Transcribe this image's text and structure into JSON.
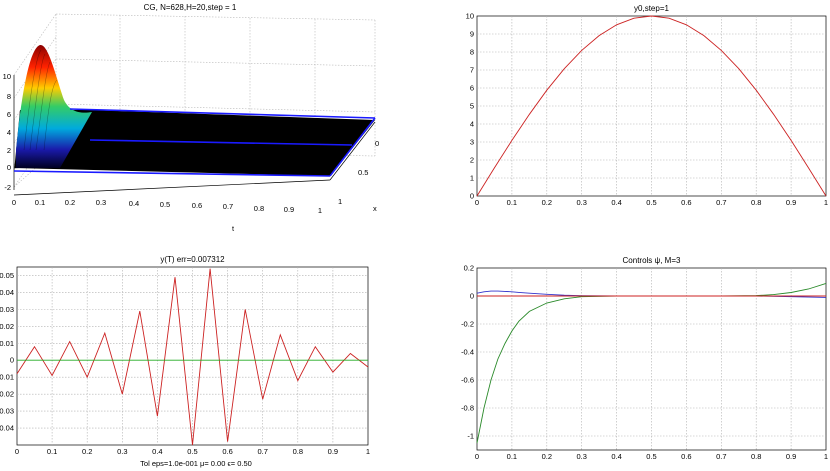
{
  "figure": {
    "surface_panel": {
      "title": "CG, N=628,H=20,step = 1",
      "z_ticks": [
        "-2",
        "0",
        "2",
        "4",
        "6",
        "8",
        "10"
      ],
      "t_ticks": [
        "0",
        "0.1",
        "0.2",
        "0.3",
        "0.4",
        "0.5",
        "0.6",
        "0.7",
        "0.8",
        "0.9",
        "1"
      ],
      "x_ticks": [
        "0",
        "0.5",
        "1"
      ],
      "t_label": "t",
      "x_label": "x",
      "colors": {
        "surface": "#000000",
        "edge_lines": "#1a1aff"
      }
    },
    "footer_text": "Tol eps=1.0e-001 μ=   0.00 ϵ=   0.50"
  },
  "chart_data": [
    {
      "type": "line",
      "title": "y0,step=1",
      "xlim": [
        0,
        1
      ],
      "ylim": [
        0,
        10
      ],
      "x_ticks": [
        "0",
        "0.1",
        "0.2",
        "0.3",
        "0.4",
        "0.5",
        "0.6",
        "0.7",
        "0.8",
        "0.9",
        "1"
      ],
      "y_ticks": [
        "0",
        "1",
        "2",
        "3",
        "4",
        "5",
        "6",
        "7",
        "8",
        "9",
        "10"
      ],
      "grid": true,
      "x": [
        0,
        0.05,
        0.1,
        0.15,
        0.2,
        0.25,
        0.3,
        0.35,
        0.4,
        0.45,
        0.5,
        0.55,
        0.6,
        0.65,
        0.7,
        0.75,
        0.8,
        0.85,
        0.9,
        0.95,
        1
      ],
      "series": [
        {
          "color": "#cc2222",
          "values": [
            0,
            1.56,
            3.09,
            4.54,
            5.88,
            7.07,
            8.09,
            8.91,
            9.51,
            9.88,
            10,
            9.88,
            9.51,
            8.91,
            8.09,
            7.07,
            5.88,
            4.54,
            3.09,
            1.56,
            0
          ]
        }
      ]
    },
    {
      "type": "line",
      "title": "y(T) err=0.007312",
      "xlim": [
        0,
        1
      ],
      "ylim": [
        -0.05,
        0.055
      ],
      "x_ticks": [
        "0",
        "0.1",
        "0.2",
        "0.3",
        "0.4",
        "0.5",
        "0.6",
        "0.7",
        "0.8",
        "0.9",
        "1"
      ],
      "y_ticks": [
        "-0.04",
        "-0.03",
        "-0.02",
        "-0.01",
        "0",
        "0.01",
        "0.02",
        "0.03",
        "0.04",
        "0.05"
      ],
      "y_tick_values": [
        -0.04,
        -0.03,
        -0.02,
        -0.01,
        0,
        0.01,
        0.02,
        0.03,
        0.04,
        0.05
      ],
      "grid": true,
      "x": [
        0,
        0.05,
        0.1,
        0.15,
        0.2,
        0.25,
        0.3,
        0.35,
        0.4,
        0.45,
        0.5,
        0.55,
        0.6,
        0.65,
        0.7,
        0.75,
        0.8,
        0.85,
        0.9,
        0.95,
        1
      ],
      "series": [
        {
          "color": "#cc2222",
          "values": [
            -0.008,
            0.008,
            -0.009,
            0.011,
            -0.01,
            0.016,
            -0.02,
            0.029,
            -0.033,
            0.049,
            -0.05,
            0.054,
            -0.048,
            0.03,
            -0.023,
            0.015,
            -0.012,
            0.008,
            -0.007,
            0.004,
            -0.004
          ]
        },
        {
          "color": "#22aa22",
          "values": [
            0,
            0,
            0,
            0,
            0,
            0,
            0,
            0,
            0,
            0,
            0,
            0,
            0,
            0,
            0,
            0,
            0,
            0,
            0,
            0,
            0
          ]
        }
      ]
    },
    {
      "type": "line",
      "title": "Controls ψ, M=3",
      "xlim": [
        0,
        1
      ],
      "ylim": [
        -1.1,
        0.2
      ],
      "x_ticks": [
        "0",
        "0.1",
        "0.2",
        "0.3",
        "0.4",
        "0.5",
        "0.6",
        "0.7",
        "0.8",
        "0.9",
        "1"
      ],
      "y_ticks": [
        "-1",
        "-0.8",
        "-0.6",
        "-0.4",
        "-0.2",
        "0",
        "0.2"
      ],
      "y_tick_values": [
        -1,
        -0.8,
        -0.6,
        -0.4,
        -0.2,
        0,
        0.2
      ],
      "grid": true,
      "x": [
        0,
        0.02,
        0.04,
        0.06,
        0.08,
        0.1,
        0.12,
        0.15,
        0.2,
        0.25,
        0.3,
        0.4,
        0.5,
        0.6,
        0.7,
        0.8,
        0.85,
        0.9,
        0.95,
        1
      ],
      "series": [
        {
          "color": "#2a8a2a",
          "values": [
            -1.05,
            -0.8,
            -0.6,
            -0.45,
            -0.34,
            -0.25,
            -0.18,
            -0.11,
            -0.05,
            -0.02,
            -0.005,
            0,
            0,
            0,
            0,
            0.003,
            0.01,
            0.025,
            0.05,
            0.09
          ]
        },
        {
          "color": "#3333cc",
          "values": [
            0.02,
            0.03,
            0.035,
            0.035,
            0.033,
            0.03,
            0.026,
            0.02,
            0.012,
            0.006,
            0.002,
            0,
            0,
            0,
            0,
            0,
            -0.002,
            -0.005,
            -0.008,
            -0.01
          ]
        },
        {
          "color": "#cc2222",
          "values": [
            0,
            0,
            0,
            0,
            0,
            0,
            0,
            0,
            0,
            0,
            0,
            0,
            0,
            0,
            0,
            0,
            0,
            0,
            0,
            0
          ]
        }
      ]
    }
  ]
}
